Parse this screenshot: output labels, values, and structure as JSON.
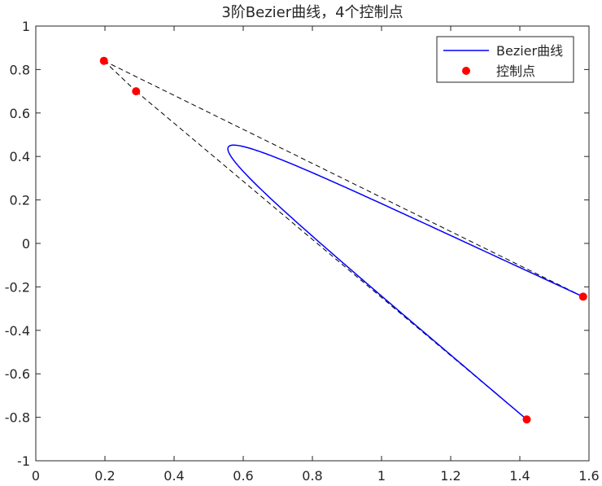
{
  "chart_data": {
    "type": "line",
    "title": "3阶Bezier曲线，4个控制点",
    "xlabel": "",
    "ylabel": "",
    "xlim": [
      0,
      1.6
    ],
    "ylim": [
      -1,
      1
    ],
    "x_ticks": [
      0,
      0.2,
      0.4,
      0.6,
      0.8,
      1,
      1.2,
      1.4,
      1.6
    ],
    "x_tick_labels": [
      "0",
      "0.2",
      "0.4",
      "0.6",
      "0.8",
      "1",
      "1.2",
      "1.4",
      "1.6"
    ],
    "y_ticks": [
      1,
      0.8,
      0.6,
      0.4,
      0.2,
      0,
      -0.2,
      -0.4,
      -0.6,
      -0.8,
      -1
    ],
    "y_tick_labels": [
      "1",
      "0.8",
      "0.6",
      "0.4",
      "0.2",
      "0",
      "-0.2",
      "-0.4",
      "-0.6",
      "-0.8",
      "-1"
    ],
    "grid": false,
    "legend_position": "top-right",
    "series": [
      {
        "name": "Bezier曲线",
        "kind": "bezier-curve",
        "color": "#0000ff",
        "control_points": [
          [
            1.42,
            -0.81
          ],
          [
            0.197,
            0.84
          ],
          [
            0.29,
            0.7
          ],
          [
            1.583,
            -0.245
          ]
        ]
      },
      {
        "name": "控制点",
        "kind": "markers",
        "color": "#ff0000",
        "points": [
          [
            0.197,
            0.84
          ],
          [
            0.29,
            0.7
          ],
          [
            1.42,
            -0.81
          ],
          [
            1.583,
            -0.245
          ]
        ]
      },
      {
        "name": "",
        "kind": "dashed-lines",
        "color": "#000000",
        "segments": [
          [
            [
              0.197,
              0.84
            ],
            [
              1.583,
              -0.245
            ]
          ],
          [
            [
              0.29,
              0.7
            ],
            [
              1.42,
              -0.81
            ]
          ],
          [
            [
              0.197,
              0.84
            ],
            [
              0.29,
              0.7
            ]
          ]
        ]
      }
    ]
  }
}
